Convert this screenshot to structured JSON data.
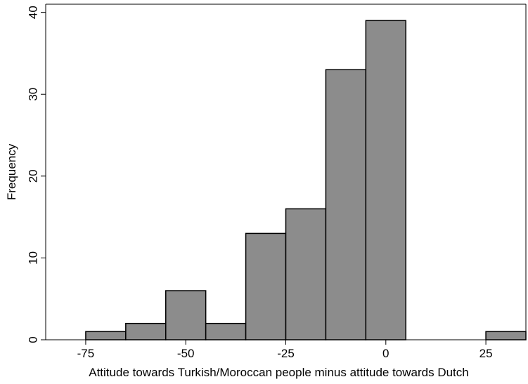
{
  "chart_data": {
    "type": "bar",
    "title": "",
    "xlabel": "Attitude towards Turkish/Moroccan people minus attitude towards Dutch",
    "ylabel": "Frequency",
    "xlim": [
      -85,
      35
    ],
    "ylim": [
      0,
      41
    ],
    "xticks": [
      "-75",
      "-50",
      "-25",
      "0",
      "25"
    ],
    "xtick_values": [
      -75,
      -50,
      -25,
      0,
      25
    ],
    "yticks": [
      "0",
      "10",
      "20",
      "30",
      "40"
    ],
    "ytick_values": [
      0,
      10,
      20,
      30,
      40
    ],
    "bin_width": 10,
    "bins": [
      {
        "start": -75,
        "end": -65,
        "value": 1
      },
      {
        "start": -65,
        "end": -55,
        "value": 2
      },
      {
        "start": -55,
        "end": -45,
        "value": 6
      },
      {
        "start": -45,
        "end": -35,
        "value": 2
      },
      {
        "start": -35,
        "end": -25,
        "value": 13
      },
      {
        "start": -25,
        "end": -15,
        "value": 16
      },
      {
        "start": -15,
        "end": -5,
        "value": 33
      },
      {
        "start": -5,
        "end": 5,
        "value": 39
      },
      {
        "start": 25,
        "end": 35,
        "value": 1
      }
    ],
    "grid": false,
    "legend": "none",
    "bar_color": "#8c8c8c",
    "bar_edge_color": "#000000"
  }
}
